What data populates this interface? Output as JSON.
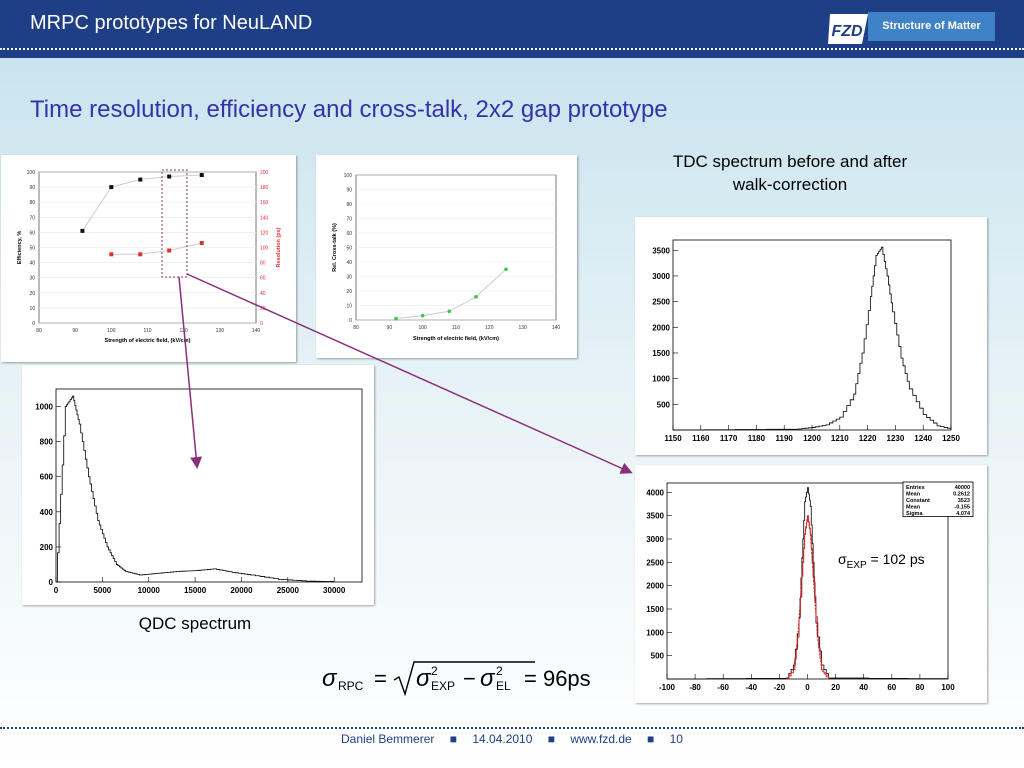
{
  "header": {
    "title": "MRPC prototypes for NeuLAND",
    "brand_label": "Structure of Matter",
    "logo_text": "FZD"
  },
  "heading": "Time resolution, efficiency and cross-talk, 2x2 gap prototype",
  "labels": {
    "tdc_caption_line1": "TDC spectrum before and after",
    "tdc_caption_line2": "walk-correction",
    "qdc_caption": "QDC spectrum",
    "sigma_label": "σ",
    "sigma_sub": "EXP",
    "sigma_value": "= 102 ps"
  },
  "formula": {
    "lhs_sym": "σ",
    "lhs_sub": "RPC",
    "eq": "=",
    "t1_sym": "σ",
    "t1_sup": "2",
    "t1_sub": "EXP",
    "minus": "−",
    "t2_sym": "σ",
    "t2_sup": "2",
    "t2_sub": "EL",
    "result": "= 96ps"
  },
  "footer": {
    "author": "Daniel Bemmerer",
    "date": "14.04.2010",
    "web": "www.fzd.de",
    "page": "10",
    "sep": "■"
  },
  "colors": {
    "header": "#1e3e86",
    "heading": "#3333aa",
    "red": "#e03030",
    "green": "#33cc33",
    "arrow": "#8a2f7a"
  },
  "chart_data": [
    {
      "type": "scatter",
      "xlabel": "Strength of electric field, (kV/cm)",
      "ylabel": "Efficiency, %",
      "y2label": "Resolution (ps)",
      "xlim": [
        80,
        140
      ],
      "ylim": [
        0,
        100
      ],
      "y2lim": [
        0,
        200
      ],
      "x_ticks": [
        "80",
        "90",
        "100",
        "110",
        "120",
        "130",
        "140"
      ],
      "y_ticks": [
        "0",
        "10",
        "20",
        "30",
        "40",
        "50",
        "60",
        "70",
        "80",
        "90",
        "100"
      ],
      "y2_ticks": [
        "0",
        "20",
        "40",
        "60",
        "80",
        "100",
        "120",
        "140",
        "160",
        "180",
        "200"
      ],
      "series": [
        {
          "axis": "left",
          "x": [
            92,
            100,
            108,
            116,
            125
          ],
          "y": [
            61,
            90,
            95,
            97,
            98
          ]
        },
        {
          "axis": "right",
          "x": [
            100,
            108,
            116,
            125
          ],
          "y": [
            91,
            91,
            96,
            106
          ]
        }
      ]
    },
    {
      "type": "scatter",
      "xlabel": "Strength of electric field, (kV/cm)",
      "ylabel": "Rel. Cross-talk (%)",
      "xlim": [
        80,
        140
      ],
      "ylim": [
        0,
        100
      ],
      "x_ticks": [
        "80",
        "90",
        "100",
        "110",
        "120",
        "130",
        "140"
      ],
      "y_ticks": [
        "0",
        "10",
        "20",
        "30",
        "40",
        "50",
        "60",
        "70",
        "80",
        "90",
        "100"
      ],
      "series": [
        {
          "x": [
            92,
            100,
            108,
            116,
            125
          ],
          "y": [
            1,
            3,
            6,
            16,
            35
          ]
        }
      ]
    },
    {
      "type": "line",
      "title": "QDC spectrum",
      "xlim": [
        0,
        33000
      ],
      "ylim": [
        0,
        1100
      ],
      "x_ticks": [
        "0",
        "5000",
        "10000",
        "15000",
        "20000",
        "25000",
        "30000"
      ],
      "y_ticks": [
        "0",
        "200",
        "400",
        "600",
        "800",
        "1000"
      ],
      "x": [
        0,
        1000,
        1800,
        2500,
        3500,
        4500,
        5500,
        6500,
        7500,
        9000,
        11000,
        13000,
        15000,
        17000,
        19000,
        21000,
        24000,
        27000,
        30000
      ],
      "y": [
        0,
        1000,
        1060,
        900,
        600,
        350,
        200,
        100,
        60,
        40,
        50,
        60,
        65,
        75,
        55,
        40,
        15,
        5,
        2
      ]
    },
    {
      "type": "line",
      "title": "TDC spectrum before and after walk-correction",
      "xlim": [
        1150,
        1250
      ],
      "ylim": [
        0,
        3700
      ],
      "x_ticks": [
        "1150",
        "1160",
        "1170",
        "1180",
        "1190",
        "1200",
        "1210",
        "1220",
        "1230",
        "1240",
        "1250"
      ],
      "y_ticks": [
        "500",
        "1000",
        "1500",
        "2000",
        "2500",
        "3000",
        "3500"
      ],
      "x": [
        1150,
        1195,
        1200,
        1205,
        1210,
        1215,
        1218,
        1221,
        1223,
        1225,
        1227,
        1229,
        1232,
        1235,
        1240,
        1245,
        1250
      ],
      "y": [
        0,
        20,
        50,
        100,
        250,
        700,
        1500,
        2600,
        3400,
        3560,
        3000,
        2300,
        1400,
        800,
        300,
        80,
        20
      ]
    },
    {
      "type": "line",
      "xlim": [
        -100,
        100
      ],
      "ylim": [
        0,
        4200
      ],
      "x_ticks": [
        "-100",
        "-80",
        "-60",
        "-40",
        "-20",
        "0",
        "20",
        "40",
        "60",
        "80",
        "100"
      ],
      "y_ticks": [
        "500",
        "1000",
        "1500",
        "2000",
        "2500",
        "3000",
        "3500",
        "4000"
      ],
      "stats": [
        [
          "Entries",
          "40000"
        ],
        [
          "Mean",
          "0.2612"
        ],
        [
          "Constant",
          "3523"
        ],
        [
          "Mean",
          "-0.155"
        ],
        [
          "Sigma",
          "4.074"
        ]
      ],
      "series": [
        {
          "x": [
            -100,
            -15,
            -10,
            -6,
            -4,
            -2,
            0,
            2,
            4,
            6,
            10,
            15,
            100
          ],
          "y": [
            0,
            20,
            300,
            1300,
            2600,
            3800,
            4100,
            3700,
            2500,
            1200,
            300,
            20,
            0
          ]
        },
        {
          "x": [
            -15,
            -10,
            -7,
            -4,
            -2,
            0,
            2,
            4,
            7,
            10,
            15
          ],
          "y": [
            0,
            200,
            900,
            2200,
            3100,
            3500,
            3100,
            2200,
            900,
            200,
            0
          ]
        }
      ]
    }
  ]
}
